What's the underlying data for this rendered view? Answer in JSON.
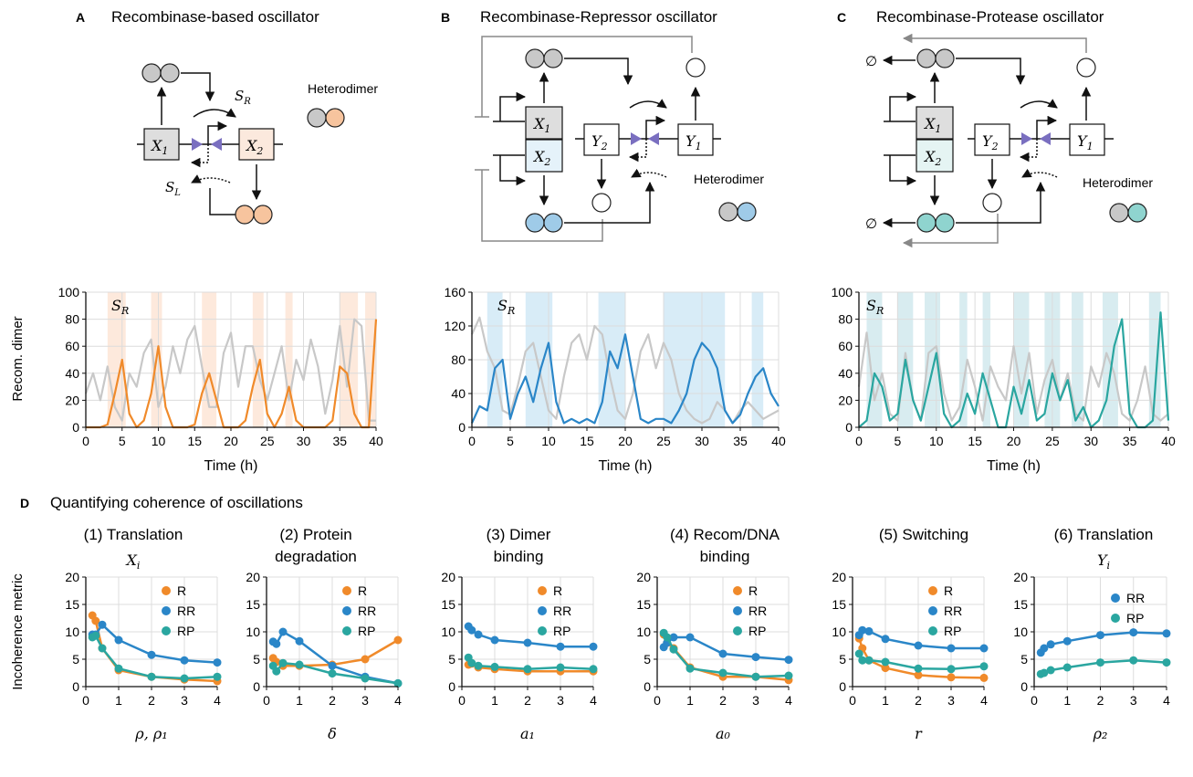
{
  "panels": {
    "A": {
      "letter": "A",
      "title": "Recombinase-based oscillator"
    },
    "B": {
      "letter": "B",
      "title": "Recombinase-Repressor oscillator"
    },
    "C": {
      "letter": "C",
      "title": "Recombinase-Protease oscillator"
    },
    "D": {
      "letter": "D",
      "title": "Quantifying coherence of oscillations"
    }
  },
  "diagram_text": {
    "heterodimer": "Heterodimer",
    "x1": "X",
    "x1_sub": "1",
    "x2": "X",
    "x2_sub": "2",
    "y1": "Y",
    "y1_sub": "1",
    "y2": "Y",
    "y2_sub": "2",
    "sr": "S",
    "sr_sub": "R",
    "sl": "S",
    "sl_sub": "L",
    "empty_set": "∅"
  },
  "colors": {
    "gray": "#c8c8c8",
    "orange": "#f08a2a",
    "blue": "#2a86c8",
    "teal": "#2aa6a0",
    "orange_light": "#f7c49e",
    "blue_light": "#9fcbe8",
    "teal_light": "#8fd4cf",
    "orange_shade": "#fde9dc",
    "blue_shade": "#d8ecf7",
    "teal_shade": "#d8ecf0",
    "purple": "#7a6fc0",
    "box_gray": "#dedede",
    "box_orange": "#fbe9dd",
    "box_blue": "#e5f2fa"
  },
  "time_series": {
    "xlabel": "Time (h)",
    "ylabel": "Recom. dimer",
    "annotation": "S",
    "annotation_sub": "R",
    "xticks": [
      0,
      5,
      10,
      15,
      20,
      25,
      30,
      35,
      40
    ]
  },
  "metric_panels": {
    "ylabel": "Incoherence metric",
    "yticks": [
      0,
      5,
      10,
      15,
      20
    ],
    "xticks": [
      0,
      1,
      2,
      3,
      4
    ]
  },
  "chart_data": [
    {
      "type": "line",
      "id": "A",
      "xlabel": "Time (h)",
      "ylabel": "Recom. dimer",
      "xlim": [
        0,
        40
      ],
      "ylim": [
        0,
        100
      ],
      "yticks": [
        0,
        20,
        40,
        60,
        80,
        100
      ],
      "shaded_intervals": [
        [
          3,
          5.5
        ],
        [
          9,
          10.5
        ],
        [
          16,
          18
        ],
        [
          23,
          24.5
        ],
        [
          27.5,
          28.5
        ],
        [
          35,
          37.5
        ],
        [
          38.5,
          40
        ]
      ],
      "series": [
        {
          "color": "gray",
          "x": [
            0,
            1,
            2,
            3,
            4,
            5,
            6,
            7,
            8,
            9,
            10,
            11,
            12,
            13,
            14,
            15,
            16,
            17,
            18,
            19,
            20,
            21,
            22,
            23,
            24,
            25,
            26,
            27,
            28,
            29,
            30,
            31,
            32,
            33,
            34,
            35,
            36,
            37,
            38,
            39,
            40
          ],
          "y": [
            25,
            40,
            20,
            45,
            15,
            5,
            40,
            30,
            55,
            65,
            15,
            30,
            60,
            40,
            65,
            75,
            45,
            15,
            15,
            55,
            70,
            30,
            60,
            60,
            35,
            20,
            40,
            60,
            20,
            50,
            35,
            65,
            45,
            10,
            35,
            75,
            30,
            80,
            75,
            5,
            5
          ]
        },
        {
          "color": "orange",
          "x": [
            0,
            1,
            2,
            3,
            4,
            5,
            6,
            7,
            8,
            9,
            10,
            11,
            12,
            13,
            14,
            15,
            16,
            17,
            18,
            19,
            20,
            21,
            22,
            23,
            24,
            25,
            26,
            27,
            28,
            29,
            30,
            31,
            32,
            33,
            34,
            35,
            36,
            37,
            38,
            39,
            40
          ],
          "y": [
            0,
            0,
            0,
            2,
            25,
            50,
            10,
            0,
            5,
            25,
            60,
            15,
            0,
            0,
            0,
            2,
            25,
            40,
            20,
            0,
            0,
            0,
            5,
            30,
            50,
            10,
            0,
            10,
            30,
            5,
            0,
            0,
            0,
            0,
            5,
            45,
            40,
            10,
            0,
            0,
            80
          ]
        }
      ]
    },
    {
      "type": "line",
      "id": "B",
      "xlabel": "Time (h)",
      "ylabel": "",
      "xlim": [
        0,
        40
      ],
      "ylim": [
        0,
        160
      ],
      "yticks": [
        0,
        40,
        80,
        120,
        160
      ],
      "shaded_intervals": [
        [
          2,
          4
        ],
        [
          7,
          10.5
        ],
        [
          16.5,
          20
        ],
        [
          25,
          33
        ],
        [
          36.5,
          38
        ]
      ],
      "series": [
        {
          "color": "gray",
          "x": [
            0,
            1,
            2,
            3,
            4,
            5,
            6,
            7,
            8,
            9,
            10,
            11,
            12,
            13,
            14,
            15,
            16,
            17,
            18,
            19,
            20,
            21,
            22,
            23,
            24,
            25,
            26,
            27,
            28,
            29,
            30,
            31,
            32,
            33,
            34,
            35,
            36,
            37,
            38,
            39,
            40
          ],
          "y": [
            110,
            130,
            90,
            70,
            20,
            15,
            50,
            90,
            100,
            60,
            20,
            10,
            60,
            100,
            110,
            80,
            120,
            110,
            60,
            20,
            10,
            40,
            90,
            110,
            70,
            100,
            80,
            40,
            20,
            10,
            5,
            10,
            30,
            20,
            5,
            20,
            30,
            20,
            10,
            15,
            20
          ]
        },
        {
          "color": "blue",
          "x": [
            0,
            1,
            2,
            3,
            4,
            5,
            6,
            7,
            8,
            9,
            10,
            11,
            12,
            13,
            14,
            15,
            16,
            17,
            18,
            19,
            20,
            21,
            22,
            23,
            24,
            25,
            26,
            27,
            28,
            29,
            30,
            31,
            32,
            33,
            34,
            35,
            36,
            37,
            38,
            39,
            40
          ],
          "y": [
            5,
            25,
            20,
            70,
            80,
            10,
            40,
            60,
            30,
            70,
            100,
            30,
            5,
            10,
            5,
            10,
            5,
            30,
            90,
            70,
            110,
            60,
            10,
            5,
            10,
            10,
            5,
            20,
            40,
            80,
            100,
            90,
            70,
            20,
            5,
            15,
            40,
            60,
            70,
            40,
            25
          ]
        }
      ]
    },
    {
      "type": "line",
      "id": "C",
      "xlabel": "Time (h)",
      "ylabel": "",
      "xlim": [
        0,
        40
      ],
      "ylim": [
        0,
        100
      ],
      "yticks": [
        0,
        20,
        40,
        60,
        80,
        100
      ],
      "shaded_intervals": [
        [
          1,
          3
        ],
        [
          5,
          7
        ],
        [
          8.5,
          10.5
        ],
        [
          13,
          14
        ],
        [
          16,
          17
        ],
        [
          20,
          22
        ],
        [
          24,
          26
        ],
        [
          27.5,
          29
        ],
        [
          31.5,
          33.5
        ],
        [
          37.5,
          39
        ]
      ],
      "series": [
        {
          "color": "gray",
          "x": [
            0,
            1,
            2,
            3,
            4,
            5,
            6,
            7,
            8,
            9,
            10,
            11,
            12,
            13,
            14,
            15,
            16,
            17,
            18,
            19,
            20,
            21,
            22,
            23,
            24,
            25,
            26,
            27,
            28,
            29,
            30,
            31,
            32,
            33,
            34,
            35,
            36,
            37,
            38,
            39,
            40
          ],
          "y": [
            30,
            70,
            20,
            40,
            10,
            5,
            55,
            20,
            5,
            55,
            60,
            25,
            5,
            15,
            50,
            30,
            5,
            45,
            30,
            20,
            60,
            25,
            55,
            10,
            35,
            50,
            20,
            40,
            10,
            5,
            45,
            30,
            55,
            40,
            10,
            5,
            20,
            45,
            10,
            5,
            10
          ]
        },
        {
          "color": "teal",
          "x": [
            0,
            1,
            2,
            3,
            4,
            5,
            6,
            7,
            8,
            9,
            10,
            11,
            12,
            13,
            14,
            15,
            16,
            17,
            18,
            19,
            20,
            21,
            22,
            23,
            24,
            25,
            26,
            27,
            28,
            29,
            30,
            31,
            32,
            33,
            34,
            35,
            36,
            37,
            38,
            39,
            40
          ],
          "y": [
            0,
            5,
            40,
            30,
            5,
            10,
            50,
            20,
            5,
            30,
            55,
            10,
            0,
            5,
            25,
            10,
            40,
            20,
            0,
            0,
            30,
            10,
            35,
            5,
            10,
            40,
            20,
            35,
            5,
            15,
            0,
            5,
            20,
            60,
            80,
            10,
            0,
            0,
            5,
            85,
            5
          ]
        }
      ]
    },
    {
      "type": "line",
      "id": "D1",
      "title": "(1) Translation",
      "title2": "",
      "xlabel": "ρ, ρ₁",
      "ylabel": "Incoherence metric",
      "math_label": "X_i",
      "xlim": [
        0,
        4
      ],
      "ylim": [
        0,
        20
      ],
      "series": [
        {
          "name": "R",
          "color": "orange",
          "x": [
            0.2,
            0.3,
            0.5,
            1,
            2,
            3,
            4
          ],
          "y": [
            13,
            12,
            7,
            3,
            1.8,
            1.3,
            1
          ]
        },
        {
          "name": "RR",
          "color": "blue",
          "x": [
            0.2,
            0.3,
            0.5,
            1,
            2,
            3,
            4
          ],
          "y": [
            9.5,
            9.5,
            11.3,
            8.5,
            5.8,
            4.8,
            4.4
          ]
        },
        {
          "name": "RP",
          "color": "teal",
          "x": [
            0.2,
            0.3,
            0.5,
            1,
            2,
            3,
            4
          ],
          "y": [
            9,
            9.3,
            7,
            3.3,
            1.8,
            1.5,
            1.8
          ]
        }
      ]
    },
    {
      "type": "line",
      "id": "D2",
      "title": "(2) Protein",
      "title2": "degradation",
      "xlabel": "δ",
      "ylabel": "",
      "xlim": [
        0,
        4
      ],
      "ylim": [
        0,
        20
      ],
      "series": [
        {
          "name": "R",
          "color": "orange",
          "x": [
            0.2,
            0.3,
            0.5,
            1,
            2,
            3,
            4
          ],
          "y": [
            5.2,
            4.5,
            3.8,
            3.8,
            4,
            5,
            8.5
          ]
        },
        {
          "name": "RR",
          "color": "blue",
          "x": [
            0.2,
            0.3,
            0.5,
            1,
            2,
            3,
            4
          ],
          "y": [
            8.2,
            7.8,
            10,
            8.3,
            3.8,
            1.8,
            0.6
          ]
        },
        {
          "name": "RP",
          "color": "teal",
          "x": [
            0.2,
            0.3,
            0.5,
            1,
            2,
            3,
            4
          ],
          "y": [
            3.8,
            2.8,
            4.3,
            4,
            2.4,
            1.5,
            0.6
          ]
        }
      ]
    },
    {
      "type": "line",
      "id": "D3",
      "title": "(3) Dimer",
      "title2": "binding",
      "xlabel": "a₁",
      "ylabel": "",
      "xlim": [
        0,
        4
      ],
      "ylim": [
        0,
        20
      ],
      "series": [
        {
          "name": "R",
          "color": "orange",
          "x": [
            0.2,
            0.3,
            0.5,
            1,
            2,
            3,
            4
          ],
          "y": [
            4,
            4.2,
            3.5,
            3.2,
            2.8,
            2.8,
            2.8
          ]
        },
        {
          "name": "RR",
          "color": "blue",
          "x": [
            0.2,
            0.3,
            0.5,
            1,
            2,
            3,
            4
          ],
          "y": [
            11,
            10.3,
            9.5,
            8.5,
            8,
            7.3,
            7.3
          ]
        },
        {
          "name": "RP",
          "color": "teal",
          "x": [
            0.2,
            0.3,
            0.5,
            1,
            2,
            3,
            4
          ],
          "y": [
            5.3,
            4.3,
            3.8,
            3.6,
            3.2,
            3.5,
            3.2
          ]
        }
      ]
    },
    {
      "type": "line",
      "id": "D4",
      "title": "(4) Recom/DNA",
      "title2": "binding",
      "xlabel": "a₀",
      "ylabel": "",
      "xlim": [
        0,
        4
      ],
      "ylim": [
        0,
        20
      ],
      "series": [
        {
          "name": "R",
          "color": "orange",
          "x": [
            0.2,
            0.3,
            0.5,
            1,
            2,
            3,
            4
          ],
          "y": [
            9.5,
            8,
            7,
            3.5,
            1.8,
            1.8,
            1.2
          ]
        },
        {
          "name": "RR",
          "color": "blue",
          "x": [
            0.2,
            0.3,
            0.5,
            1,
            2,
            3,
            4
          ],
          "y": [
            7.2,
            8,
            9,
            9,
            6,
            5.4,
            4.9
          ]
        },
        {
          "name": "RP",
          "color": "teal",
          "x": [
            0.2,
            0.3,
            0.5,
            1,
            2,
            3,
            4
          ],
          "y": [
            9.8,
            9,
            6.8,
            3.3,
            2.5,
            1.8,
            2
          ]
        }
      ]
    },
    {
      "type": "line",
      "id": "D5",
      "title": "(5) Switching",
      "title2": "",
      "xlabel": "r",
      "ylabel": "",
      "xlim": [
        0,
        4
      ],
      "ylim": [
        0,
        20
      ],
      "series": [
        {
          "name": "R",
          "color": "orange",
          "x": [
            0.2,
            0.3,
            0.5,
            1,
            2,
            3,
            4
          ],
          "y": [
            8.8,
            7,
            4.8,
            3.4,
            2.1,
            1.7,
            1.6
          ]
        },
        {
          "name": "RR",
          "color": "blue",
          "x": [
            0.2,
            0.3,
            0.5,
            1,
            2,
            3,
            4
          ],
          "y": [
            9.4,
            10.3,
            10.1,
            8.7,
            7.5,
            7,
            7
          ]
        },
        {
          "name": "RP",
          "color": "teal",
          "x": [
            0.2,
            0.3,
            0.5,
            1,
            2,
            3,
            4
          ],
          "y": [
            6,
            4.8,
            4.8,
            4.5,
            3.3,
            3.2,
            3.7
          ]
        }
      ]
    },
    {
      "type": "line",
      "id": "D6",
      "title": "(6) Translation",
      "title2": "",
      "xlabel": "ρ₂",
      "ylabel": "",
      "math_label": "Y_i",
      "xlim": [
        0,
        4
      ],
      "ylim": [
        0,
        20
      ],
      "series": [
        {
          "name": "RR",
          "color": "blue",
          "x": [
            0.2,
            0.3,
            0.5,
            1,
            2,
            3,
            4
          ],
          "y": [
            6.2,
            7,
            7.7,
            8.3,
            9.4,
            9.9,
            9.7
          ]
        },
        {
          "name": "RP",
          "color": "teal",
          "x": [
            0.2,
            0.3,
            0.5,
            1,
            2,
            3,
            4
          ],
          "y": [
            2.3,
            2.5,
            3,
            3.5,
            4.4,
            4.8,
            4.4
          ]
        }
      ]
    }
  ]
}
